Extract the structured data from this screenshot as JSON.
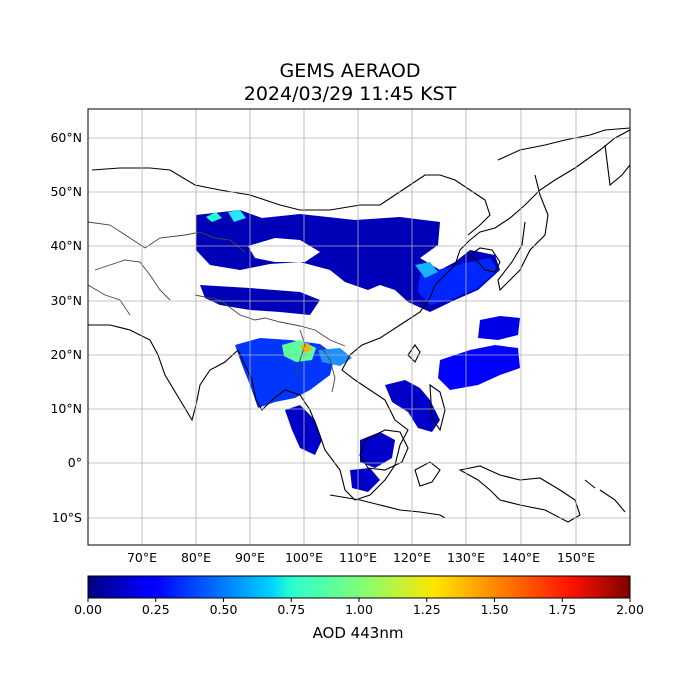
{
  "title": "GEMS AERAOD",
  "subtitle": "2024/03/29 11:45 KST",
  "lon_ticks": [
    "70°E",
    "80°E",
    "90°E",
    "100°E",
    "110°E",
    "120°E",
    "130°E",
    "140°E",
    "150°E"
  ],
  "lat_ticks": [
    "60°N",
    "50°N",
    "40°N",
    "30°N",
    "20°N",
    "10°N",
    "0°",
    "10°S"
  ],
  "colorbar": {
    "label": "AOD 443nm",
    "ticks": [
      "0.00",
      "0.25",
      "0.50",
      "0.75",
      "1.00",
      "1.25",
      "1.50",
      "1.75",
      "2.00"
    ],
    "min": 0,
    "max": 2,
    "colormap": "jet"
  },
  "colors": {
    "grid": "#b0b0b0",
    "coastline": "#000000",
    "borders": "#444444"
  }
}
